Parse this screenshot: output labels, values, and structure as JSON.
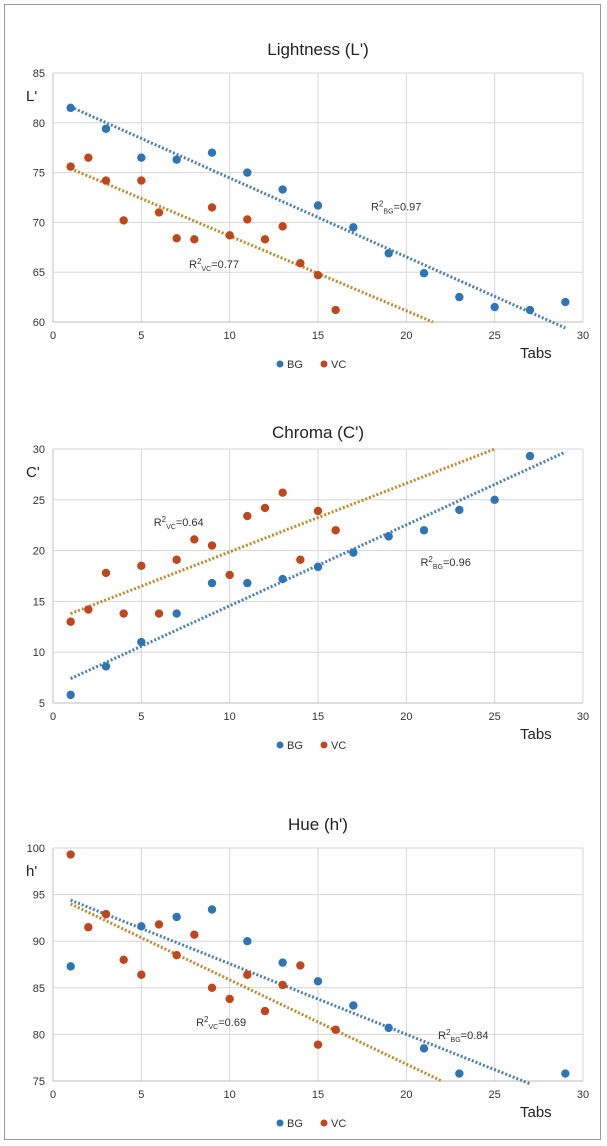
{
  "colors": {
    "BG": "#2e75b6",
    "VC": "#c0461b",
    "BG_trend": "#4a7fb0",
    "VC_trend": "#c08a2a"
  },
  "chart_data": [
    {
      "type": "scatter",
      "title": "Lightness (L')",
      "ylabel": "L'",
      "xlabel": "Tabs",
      "xlim": [
        0,
        30
      ],
      "ylim": [
        60,
        85
      ],
      "xticks": [
        0,
        5,
        10,
        15,
        20,
        25,
        30
      ],
      "yticks": [
        60,
        65,
        70,
        75,
        80,
        85
      ],
      "grid": true,
      "legend": "bottom",
      "series": [
        {
          "name": "BG",
          "color": "#2e75b6",
          "x": [
            1,
            3,
            5,
            7,
            9,
            11,
            13,
            15,
            17,
            19,
            21,
            23,
            25,
            27,
            29
          ],
          "y": [
            81.5,
            79.4,
            76.5,
            76.3,
            77.0,
            75.0,
            73.3,
            71.7,
            69.5,
            66.9,
            64.9,
            62.5,
            61.5,
            61.2,
            62.0
          ],
          "trend": {
            "x": [
              1,
              29
            ],
            "y": [
              81.6,
              59.4
            ]
          }
        },
        {
          "name": "VC",
          "color": "#c0461b",
          "x": [
            1,
            2,
            3,
            4,
            5,
            6,
            7,
            8,
            9,
            10,
            11,
            12,
            13,
            14,
            15,
            16
          ],
          "y": [
            75.6,
            76.5,
            74.2,
            70.2,
            74.2,
            71.0,
            68.4,
            68.3,
            71.5,
            68.7,
            70.3,
            68.3,
            69.6,
            65.9,
            64.7,
            61.2
          ],
          "trend": {
            "x": [
              1,
              21.5
            ],
            "y": [
              75.4,
              60.0
            ]
          }
        }
      ],
      "annotations": [
        {
          "pre": "R",
          "sup": "2",
          "sub": "BG",
          "post": "=0.97",
          "x": 18.0,
          "y": 71.2
        },
        {
          "pre": "R",
          "sup": "2",
          "sub": "VC",
          "post": "=0.77",
          "x": 7.7,
          "y": 65.4
        }
      ]
    },
    {
      "type": "scatter",
      "title": "Chroma (C')",
      "ylabel": "C'",
      "xlabel": "Tabs",
      "xlim": [
        0,
        30
      ],
      "ylim": [
        5,
        30
      ],
      "xticks": [
        0,
        5,
        10,
        15,
        20,
        25,
        30
      ],
      "yticks": [
        5,
        10,
        15,
        20,
        25,
        30
      ],
      "grid": true,
      "legend": "bottom",
      "series": [
        {
          "name": "BG",
          "color": "#2e75b6",
          "x": [
            1,
            3,
            5,
            7,
            9,
            11,
            13,
            15,
            17,
            19,
            21,
            23,
            25,
            27
          ],
          "y": [
            5.8,
            8.6,
            11.0,
            13.8,
            16.8,
            16.8,
            17.2,
            18.4,
            19.8,
            21.4,
            22.0,
            24.0,
            25.0,
            29.3
          ],
          "trend": {
            "x": [
              1,
              29
            ],
            "y": [
              7.4,
              29.7
            ]
          }
        },
        {
          "name": "VC",
          "color": "#c0461b",
          "x": [
            1,
            2,
            3,
            4,
            5,
            6,
            7,
            8,
            9,
            10,
            11,
            12,
            13,
            14,
            15,
            16
          ],
          "y": [
            13.0,
            14.2,
            17.8,
            13.8,
            18.5,
            13.8,
            19.1,
            21.1,
            20.5,
            17.6,
            23.4,
            24.2,
            25.7,
            19.1,
            23.9,
            22.0
          ],
          "trend": {
            "x": [
              1,
              25
            ],
            "y": [
              13.8,
              30.0
            ]
          }
        }
      ],
      "annotations": [
        {
          "pre": "R",
          "sup": "2",
          "sub": "VC",
          "post": "=0.64",
          "x": 5.7,
          "y": 22.4
        },
        {
          "pre": "R",
          "sup": "2",
          "sub": "BG",
          "post": "=0.96",
          "x": 20.8,
          "y": 18.5
        }
      ]
    },
    {
      "type": "scatter",
      "title": "Hue (h')",
      "ylabel": "h'",
      "xlabel": "Tabs",
      "xlim": [
        0,
        30
      ],
      "ylim": [
        75,
        100
      ],
      "xticks": [
        0,
        5,
        10,
        15,
        20,
        25,
        30
      ],
      "yticks": [
        75,
        80,
        85,
        90,
        95,
        100
      ],
      "grid": true,
      "legend": "bottom",
      "series": [
        {
          "name": "BG",
          "color": "#2e75b6",
          "x": [
            1,
            3,
            5,
            7,
            9,
            11,
            13,
            15,
            17,
            19,
            21,
            23,
            29
          ],
          "y": [
            87.3,
            92.9,
            91.6,
            92.6,
            93.4,
            90.0,
            87.7,
            85.7,
            83.1,
            80.7,
            78.5,
            75.8,
            75.8
          ],
          "trend": {
            "x": [
              1,
              27
            ],
            "y": [
              94.4,
              74.7
            ]
          }
        },
        {
          "name": "VC",
          "color": "#c0461b",
          "x": [
            1,
            2,
            3,
            4,
            5,
            6,
            7,
            8,
            9,
            10,
            11,
            12,
            13,
            14,
            15,
            16
          ],
          "y": [
            99.3,
            91.5,
            92.9,
            88.0,
            86.4,
            91.8,
            88.5,
            90.7,
            85.0,
            83.8,
            86.4,
            82.5,
            85.3,
            87.4,
            78.9,
            80.5
          ],
          "trend": {
            "x": [
              1,
              22
            ],
            "y": [
              94.0,
              75.0
            ]
          }
        }
      ],
      "annotations": [
        {
          "pre": "R",
          "sup": "2",
          "sub": "VC",
          "post": "=0.69",
          "x": 8.1,
          "y": 80.9
        },
        {
          "pre": "R",
          "sup": "2",
          "sub": "BG",
          "post": "=0.84",
          "x": 21.8,
          "y": 79.5
        }
      ]
    }
  ]
}
